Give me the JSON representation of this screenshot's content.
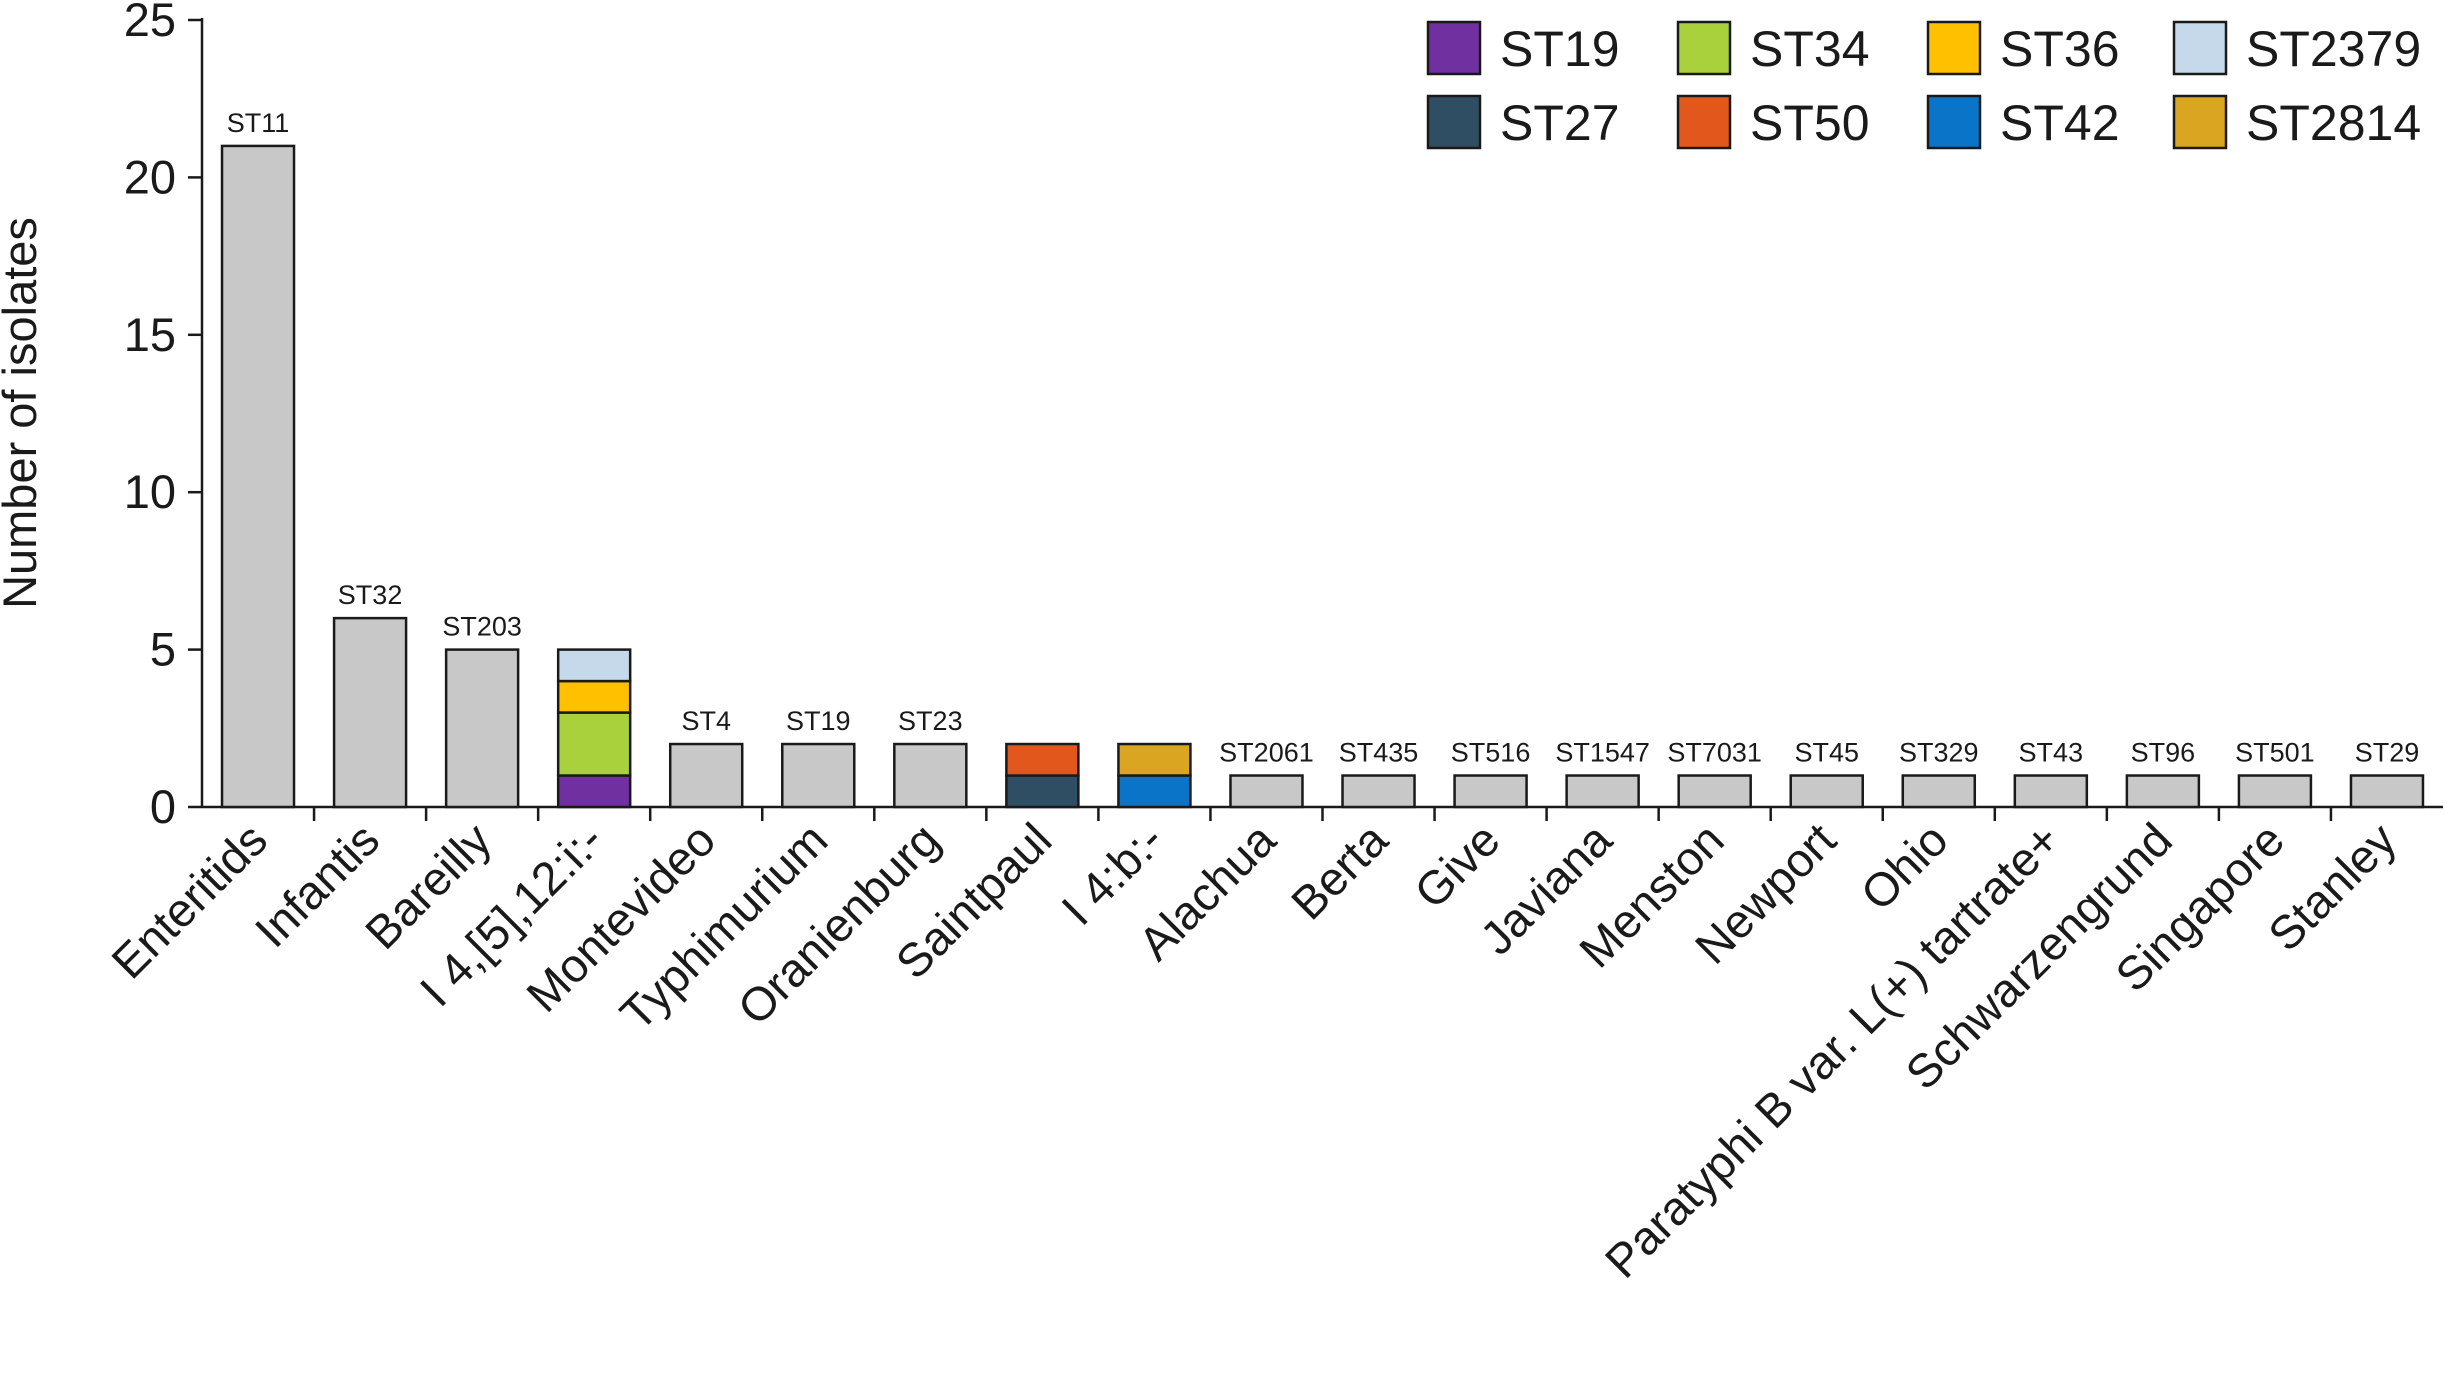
{
  "chart_data": {
    "type": "bar",
    "stacked": true,
    "title": "",
    "xlabel": "",
    "ylabel": "Number of isolates",
    "ylim": [
      0,
      25
    ],
    "yticks": [
      0,
      5,
      10,
      15,
      20,
      25
    ],
    "grid": false,
    "legend_position": "top-right",
    "default_color": "#c8c8c8",
    "legend": [
      {
        "label": "ST19",
        "color": "#7030a0"
      },
      {
        "label": "ST34",
        "color": "#a9d13b"
      },
      {
        "label": "ST36",
        "color": "#ffc000"
      },
      {
        "label": "ST2379",
        "color": "#c5d9ea"
      },
      {
        "label": "ST27",
        "color": "#2f4e63"
      },
      {
        "label": "ST50",
        "color": "#e2571b"
      },
      {
        "label": "ST42",
        "color": "#0a74c9"
      },
      {
        "label": "ST2814",
        "color": "#daa520"
      }
    ],
    "categories": [
      {
        "name": "Enteritids",
        "label": "ST11",
        "segments": [
          {
            "value": 21
          }
        ]
      },
      {
        "name": "Infantis",
        "label": "ST32",
        "segments": [
          {
            "value": 6
          }
        ]
      },
      {
        "name": "Bareilly",
        "label": "ST203",
        "segments": [
          {
            "value": 5
          }
        ]
      },
      {
        "name": "I 4,[5],12:i:-",
        "label": "",
        "segments": [
          {
            "value": 1,
            "st": "ST19"
          },
          {
            "value": 2,
            "st": "ST34"
          },
          {
            "value": 1,
            "st": "ST36"
          },
          {
            "value": 1,
            "st": "ST2379"
          }
        ]
      },
      {
        "name": "Montevideo",
        "label": "ST4",
        "segments": [
          {
            "value": 2
          }
        ]
      },
      {
        "name": "Typhimurium",
        "label": "ST19",
        "segments": [
          {
            "value": 2
          }
        ]
      },
      {
        "name": "Oranienburg",
        "label": "ST23",
        "segments": [
          {
            "value": 2
          }
        ]
      },
      {
        "name": "Saintpaul",
        "label": "",
        "segments": [
          {
            "value": 1,
            "st": "ST27"
          },
          {
            "value": 1,
            "st": "ST50"
          }
        ]
      },
      {
        "name": "I 4:b:-",
        "label": "",
        "segments": [
          {
            "value": 1,
            "st": "ST42"
          },
          {
            "value": 1,
            "st": "ST2814"
          }
        ]
      },
      {
        "name": "Alachua",
        "label": "ST2061",
        "segments": [
          {
            "value": 1
          }
        ]
      },
      {
        "name": "Berta",
        "label": "ST435",
        "segments": [
          {
            "value": 1
          }
        ]
      },
      {
        "name": "Give",
        "label": "ST516",
        "segments": [
          {
            "value": 1
          }
        ]
      },
      {
        "name": "Javiana",
        "label": "ST1547",
        "segments": [
          {
            "value": 1
          }
        ]
      },
      {
        "name": "Menston",
        "label": "ST7031",
        "segments": [
          {
            "value": 1
          }
        ]
      },
      {
        "name": "Newport",
        "label": "ST45",
        "segments": [
          {
            "value": 1
          }
        ]
      },
      {
        "name": "Ohio",
        "label": "ST329",
        "segments": [
          {
            "value": 1
          }
        ]
      },
      {
        "name": "Paratyphi B var. L(+) tartrate+",
        "label": "ST43",
        "segments": [
          {
            "value": 1
          }
        ]
      },
      {
        "name": "Schwarzengrund",
        "label": "ST96",
        "segments": [
          {
            "value": 1
          }
        ]
      },
      {
        "name": "Singapore",
        "label": "ST501",
        "segments": [
          {
            "value": 1
          }
        ]
      },
      {
        "name": "Stanley",
        "label": "ST29",
        "segments": [
          {
            "value": 1
          }
        ]
      }
    ]
  }
}
